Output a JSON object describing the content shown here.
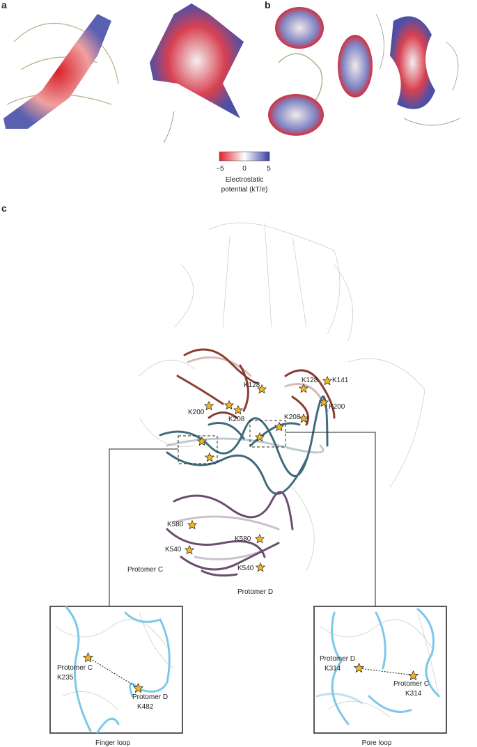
{
  "panel_labels": [
    "a",
    "b",
    "c"
  ],
  "colorbar": {
    "ticks": [
      "−5",
      "0",
      "5"
    ],
    "title": [
      "Electrostatic",
      "potential (kT/e)"
    ]
  },
  "residues": [
    "K128",
    "K128",
    "K141",
    "K200",
    "K208",
    "K200",
    "K208",
    "K580",
    "K580",
    "K540",
    "K540"
  ],
  "protomers": [
    "Protomer C",
    "Protomer D"
  ],
  "insets": [
    {
      "title": "Finger loop",
      "labels": [
        [
          "Protomer C",
          "K235"
        ],
        [
          "Protomer D",
          "K482"
        ]
      ]
    },
    {
      "title": "Pore loop",
      "labels": [
        [
          "Protomer D",
          "K314"
        ],
        [
          "Protomer C",
          "K314"
        ]
      ]
    }
  ]
}
